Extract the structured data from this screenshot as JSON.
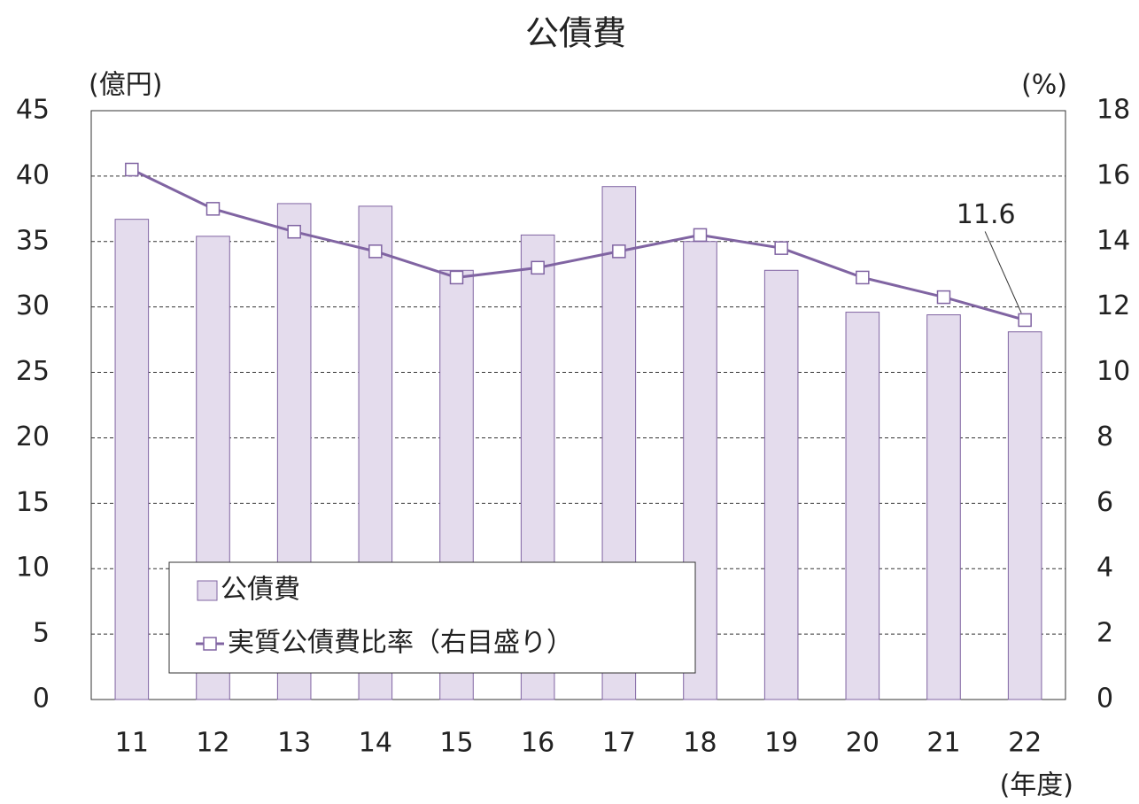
{
  "chart_data": {
    "type": "bar-line",
    "title": "公債費",
    "y_label": "(億円)",
    "y2_label": "(%)",
    "x_label": "(年度)",
    "categories": [
      "11",
      "12",
      "13",
      "14",
      "15",
      "16",
      "17",
      "18",
      "19",
      "20",
      "21",
      "22"
    ],
    "series": [
      {
        "name": "公債費",
        "type": "bar",
        "color": "#e4dced",
        "edge": "#8064a2",
        "values": [
          36.7,
          35.4,
          37.9,
          37.7,
          32.8,
          35.5,
          39.2,
          35.0,
          32.8,
          29.6,
          29.4,
          28.1
        ]
      },
      {
        "name": "実質公債費比率（右目盛り）",
        "type": "line",
        "axis": "y2",
        "color": "#8064a2",
        "values": [
          16.2,
          15.0,
          14.3,
          13.7,
          12.9,
          13.2,
          13.7,
          14.2,
          13.8,
          12.9,
          12.3,
          11.6
        ]
      }
    ],
    "annotated_point": 11,
    "ylim": [
      0,
      45
    ],
    "yticks": [
      0,
      5,
      10,
      15,
      20,
      25,
      30,
      35,
      40,
      45
    ],
    "y2lim": [
      0,
      18
    ],
    "y2ticks": [
      0,
      2,
      4,
      6,
      8,
      10,
      12,
      14,
      16,
      18
    ],
    "grid": true,
    "legend": "lower-left"
  }
}
